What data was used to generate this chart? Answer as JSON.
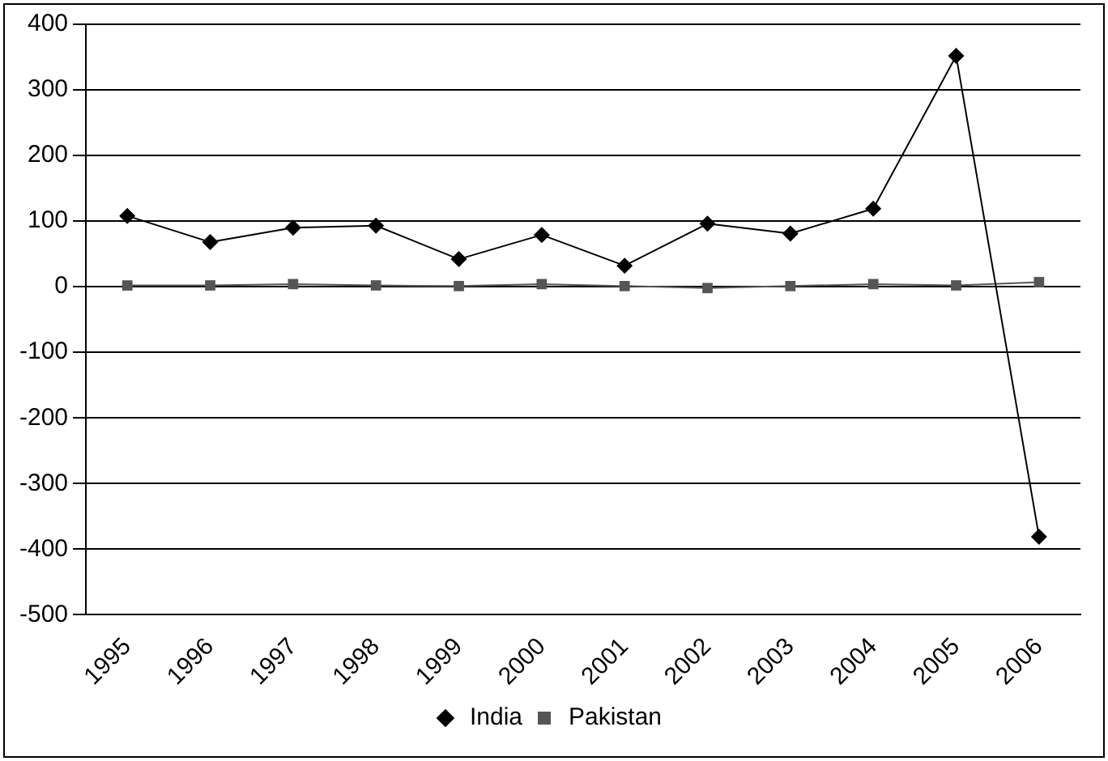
{
  "chart_data": {
    "type": "line",
    "categories": [
      "1995",
      "1996",
      "1997",
      "1998",
      "1999",
      "2000",
      "2001",
      "2002",
      "2003",
      "2004",
      "2005",
      "2006"
    ],
    "series": [
      {
        "name": "India",
        "color": "#000000",
        "marker": "diamond",
        "values": [
          108,
          68,
          90,
          93,
          42,
          79,
          32,
          96,
          81,
          119,
          352,
          -381
        ]
      },
      {
        "name": "Pakistan",
        "color": "#555555",
        "marker": "square",
        "values": [
          2,
          2,
          4,
          2,
          1,
          4,
          1,
          -2,
          1,
          4,
          2,
          7
        ]
      }
    ],
    "ylim": [
      -500,
      400
    ],
    "yticks": [
      -500,
      -400,
      -300,
      -200,
      -100,
      0,
      100,
      200,
      300,
      400
    ],
    "grid": "y",
    "legend": "bottom"
  }
}
